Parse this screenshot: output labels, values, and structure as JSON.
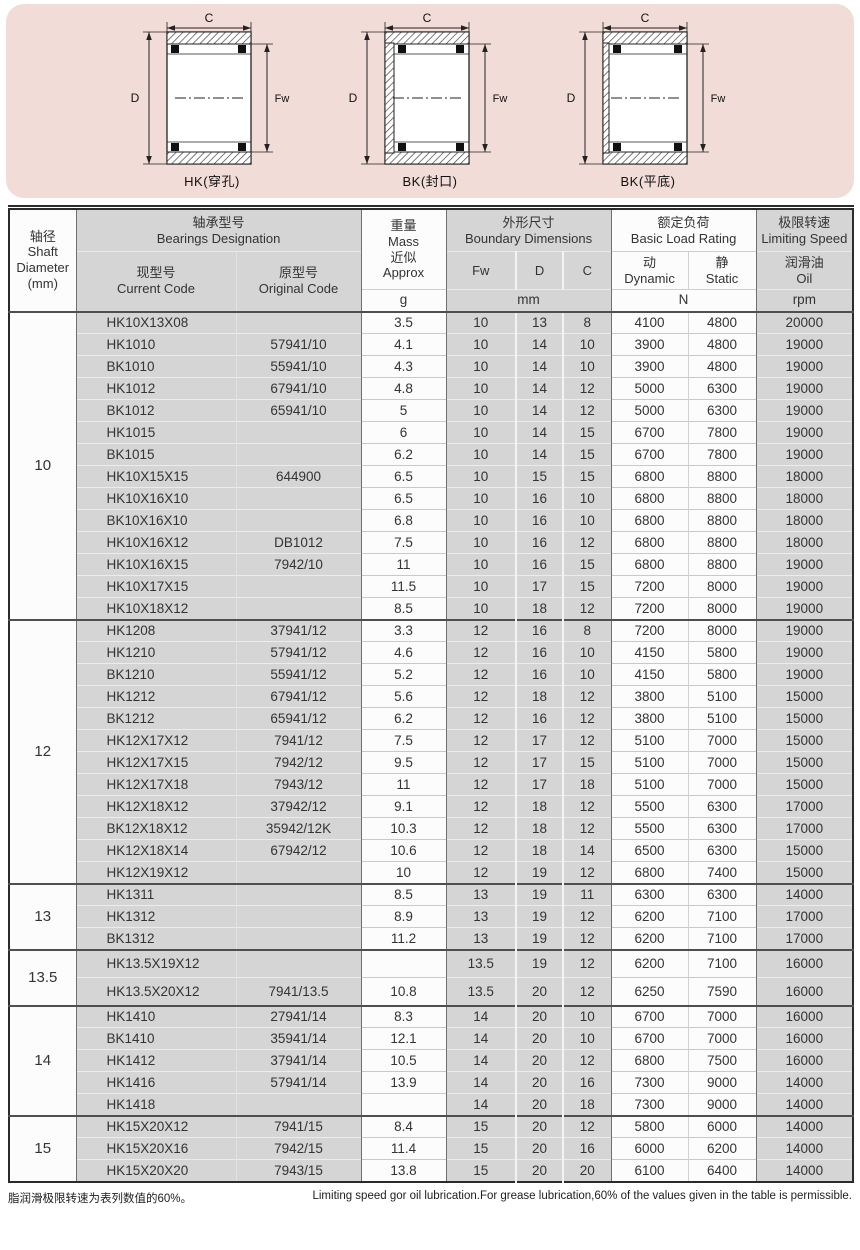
{
  "colors": {
    "panel_pink": "#f1dcd7",
    "cell_gray": "#d5d5d5",
    "cell_white": "#fcfcfc",
    "border_dark": "#2b2b2b"
  },
  "figures": {
    "dim_width": "C",
    "dim_outer": "D",
    "dim_inner": "Fw",
    "items": [
      {
        "label": "HK(穿孔)",
        "type": "hk"
      },
      {
        "label": "BK(封口)",
        "type": "bk_seal"
      },
      {
        "label": "BK(平底)",
        "type": "bk_flat"
      }
    ]
  },
  "table": {
    "header": {
      "shaft": "轴径\nShaft\nDiameter\n(mm)",
      "designation": "轴承型号\nBearings Designation",
      "current": "现型号\nCurrent Code",
      "original": "原型号\nOriginal Code",
      "mass": "重量\nMass\n近似\nApprox",
      "dims": "外形尺寸\nBoundary Dimensions",
      "fw": "Fw",
      "d": "D",
      "c": "C",
      "load": "额定负荷\nBasic Load Rating",
      "dynamic": "动\nDynamic",
      "static": "静\nStatic",
      "speed": "极限转速\nLimiting Speed",
      "oil": "润滑油\nOil",
      "unit_mass": "g",
      "unit_dims": "mm",
      "unit_load": "N",
      "unit_speed": "rpm"
    },
    "groups": [
      {
        "shaft": "10",
        "tall": false,
        "rows": [
          [
            "HK10X13X08",
            "",
            "3.5",
            "10",
            "13",
            "8",
            "4100",
            "4800",
            "20000"
          ],
          [
            "HK1010",
            "57941/10",
            "4.1",
            "10",
            "14",
            "10",
            "3900",
            "4800",
            "19000"
          ],
          [
            "BK1010",
            "55941/10",
            "4.3",
            "10",
            "14",
            "10",
            "3900",
            "4800",
            "19000"
          ],
          [
            "HK1012",
            "67941/10",
            "4.8",
            "10",
            "14",
            "12",
            "5000",
            "6300",
            "19000"
          ],
          [
            "BK1012",
            "65941/10",
            "5",
            "10",
            "14",
            "12",
            "5000",
            "6300",
            "19000"
          ],
          [
            "HK1015",
            "",
            "6",
            "10",
            "14",
            "15",
            "6700",
            "7800",
            "19000"
          ],
          [
            "BK1015",
            "",
            "6.2",
            "10",
            "14",
            "15",
            "6700",
            "7800",
            "19000"
          ],
          [
            "HK10X15X15",
            "644900",
            "6.5",
            "10",
            "15",
            "15",
            "6800",
            "8800",
            "18000"
          ],
          [
            "HK10X16X10",
            "",
            "6.5",
            "10",
            "16",
            "10",
            "6800",
            "8800",
            "18000"
          ],
          [
            "BK10X16X10",
            "",
            "6.8",
            "10",
            "16",
            "10",
            "6800",
            "8800",
            "18000"
          ],
          [
            "HK10X16X12",
            "DB1012",
            "7.5",
            "10",
            "16",
            "12",
            "6800",
            "8800",
            "18000"
          ],
          [
            "HK10X16X15",
            "7942/10",
            "11",
            "10",
            "16",
            "15",
            "6800",
            "8800",
            "19000"
          ],
          [
            "HK10X17X15",
            "",
            "11.5",
            "10",
            "17",
            "15",
            "7200",
            "8000",
            "19000"
          ],
          [
            "HK10X18X12",
            "",
            "8.5",
            "10",
            "18",
            "12",
            "7200",
            "8000",
            "19000"
          ]
        ]
      },
      {
        "shaft": "12",
        "tall": false,
        "rows": [
          [
            "HK1208",
            "37941/12",
            "3.3",
            "12",
            "16",
            "8",
            "7200",
            "8000",
            "19000"
          ],
          [
            "HK1210",
            "57941/12",
            "4.6",
            "12",
            "16",
            "10",
            "4150",
            "5800",
            "19000"
          ],
          [
            "BK1210",
            "55941/12",
            "5.2",
            "12",
            "16",
            "10",
            "4150",
            "5800",
            "19000"
          ],
          [
            "HK1212",
            "67941/12",
            "5.6",
            "12",
            "18",
            "12",
            "3800",
            "5100",
            "15000"
          ],
          [
            "BK1212",
            "65941/12",
            "6.2",
            "12",
            "16",
            "12",
            "3800",
            "5100",
            "15000"
          ],
          [
            "HK12X17X12",
            "7941/12",
            "7.5",
            "12",
            "17",
            "12",
            "5100",
            "7000",
            "15000"
          ],
          [
            "HK12X17X15",
            "7942/12",
            "9.5",
            "12",
            "17",
            "15",
            "5100",
            "7000",
            "15000"
          ],
          [
            "HK12X17X18",
            "7943/12",
            "11",
            "12",
            "17",
            "18",
            "5100",
            "7000",
            "15000"
          ],
          [
            "HK12X18X12",
            "37942/12",
            "9.1",
            "12",
            "18",
            "12",
            "5500",
            "6300",
            "17000"
          ],
          [
            "BK12X18X12",
            "35942/12K",
            "10.3",
            "12",
            "18",
            "12",
            "5500",
            "6300",
            "17000"
          ],
          [
            "HK12X18X14",
            "67942/12",
            "10.6",
            "12",
            "18",
            "14",
            "6500",
            "6300",
            "15000"
          ],
          [
            "HK12X19X12",
            "",
            "10",
            "12",
            "19",
            "12",
            "6800",
            "7400",
            "15000"
          ]
        ]
      },
      {
        "shaft": "13",
        "tall": false,
        "rows": [
          [
            "HK1311",
            "",
            "8.5",
            "13",
            "19",
            "11",
            "6300",
            "6300",
            "14000"
          ],
          [
            "HK1312",
            "",
            "8.9",
            "13",
            "19",
            "12",
            "6200",
            "7100",
            "17000"
          ],
          [
            "BK1312",
            "",
            "11.2",
            "13",
            "19",
            "12",
            "6200",
            "7100",
            "17000"
          ]
        ]
      },
      {
        "shaft": "13.5",
        "tall": true,
        "rows": [
          [
            "HK13.5X19X12",
            "",
            "",
            "13.5",
            "19",
            "12",
            "6200",
            "7100",
            "16000"
          ],
          [
            "HK13.5X20X12",
            "7941/13.5",
            "10.8",
            "13.5",
            "20",
            "12",
            "6250",
            "7590",
            "16000"
          ]
        ]
      },
      {
        "shaft": "14",
        "tall": false,
        "rows": [
          [
            "HK1410",
            "27941/14",
            "8.3",
            "14",
            "20",
            "10",
            "6700",
            "7000",
            "16000"
          ],
          [
            "BK1410",
            "35941/14",
            "12.1",
            "14",
            "20",
            "10",
            "6700",
            "7000",
            "16000"
          ],
          [
            "HK1412",
            "37941/14",
            "10.5",
            "14",
            "20",
            "12",
            "6800",
            "7500",
            "16000"
          ],
          [
            "HK1416",
            "57941/14",
            "13.9",
            "14",
            "20",
            "16",
            "7300",
            "9000",
            "14000"
          ],
          [
            "HK1418",
            "",
            "",
            "14",
            "20",
            "18",
            "7300",
            "9000",
            "14000"
          ]
        ]
      },
      {
        "shaft": "15",
        "tall": false,
        "rows": [
          [
            "HK15X20X12",
            "7941/15",
            "8.4",
            "15",
            "20",
            "12",
            "5800",
            "6000",
            "14000"
          ],
          [
            "HK15X20X16",
            "7942/15",
            "11.4",
            "15",
            "20",
            "16",
            "6000",
            "6200",
            "14000"
          ],
          [
            "HK15X20X20",
            "7943/15",
            "13.8",
            "15",
            "20",
            "20",
            "6100",
            "6400",
            "14000"
          ]
        ]
      }
    ]
  },
  "footnotes": {
    "zh": "脂润滑极限转速为表列数值的60%。",
    "en": "Limiting speed gor oil lubrication.For grease lubrication,60% of the values given in the table is permissible."
  }
}
